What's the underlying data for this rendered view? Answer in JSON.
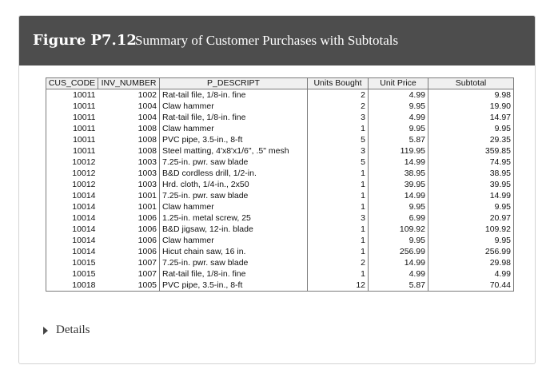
{
  "figure": {
    "number": "Figure P7.12",
    "title": "Summary of Customer Purchases with Subtotals"
  },
  "table": {
    "columns": [
      "CUS_CODE",
      "INV_NUMBER",
      "P_DESCRIPT",
      "Units Bought",
      "Unit Price",
      "Subtotal"
    ],
    "rows": [
      [
        "10011",
        "1002",
        "Rat-tail file, 1/8-in. fine",
        "2",
        "4.99",
        "9.98"
      ],
      [
        "10011",
        "1004",
        "Claw hammer",
        "2",
        "9.95",
        "19.90"
      ],
      [
        "10011",
        "1004",
        "Rat-tail file, 1/8-in. fine",
        "3",
        "4.99",
        "14.97"
      ],
      [
        "10011",
        "1008",
        "Claw hammer",
        "1",
        "9.95",
        "9.95"
      ],
      [
        "10011",
        "1008",
        "PVC pipe, 3.5-in., 8-ft",
        "5",
        "5.87",
        "29.35"
      ],
      [
        "10011",
        "1008",
        "Steel matting, 4'x8'x1/6\", .5\" mesh",
        "3",
        "119.95",
        "359.85"
      ],
      [
        "10012",
        "1003",
        "7.25-in. pwr. saw blade",
        "5",
        "14.99",
        "74.95"
      ],
      [
        "10012",
        "1003",
        "B&D cordless drill, 1/2-in.",
        "1",
        "38.95",
        "38.95"
      ],
      [
        "10012",
        "1003",
        "Hrd. cloth, 1/4-in., 2x50",
        "1",
        "39.95",
        "39.95"
      ],
      [
        "10014",
        "1001",
        "7.25-in. pwr. saw blade",
        "1",
        "14.99",
        "14.99"
      ],
      [
        "10014",
        "1001",
        "Claw hammer",
        "1",
        "9.95",
        "9.95"
      ],
      [
        "10014",
        "1006",
        "1.25-in. metal screw, 25",
        "3",
        "6.99",
        "20.97"
      ],
      [
        "10014",
        "1006",
        "B&D jigsaw, 12-in. blade",
        "1",
        "109.92",
        "109.92"
      ],
      [
        "10014",
        "1006",
        "Claw hammer",
        "1",
        "9.95",
        "9.95"
      ],
      [
        "10014",
        "1006",
        "Hicut chain saw, 16 in.",
        "1",
        "256.99",
        "256.99"
      ],
      [
        "10015",
        "1007",
        "7.25-in. pwr. saw blade",
        "2",
        "14.99",
        "29.98"
      ],
      [
        "10015",
        "1007",
        "Rat-tail file, 1/8-in. fine",
        "1",
        "4.99",
        "4.99"
      ],
      [
        "10018",
        "1005",
        "PVC pipe, 3.5-in., 8-ft",
        "12",
        "5.87",
        "70.44"
      ]
    ]
  },
  "details": {
    "label": "Details"
  }
}
